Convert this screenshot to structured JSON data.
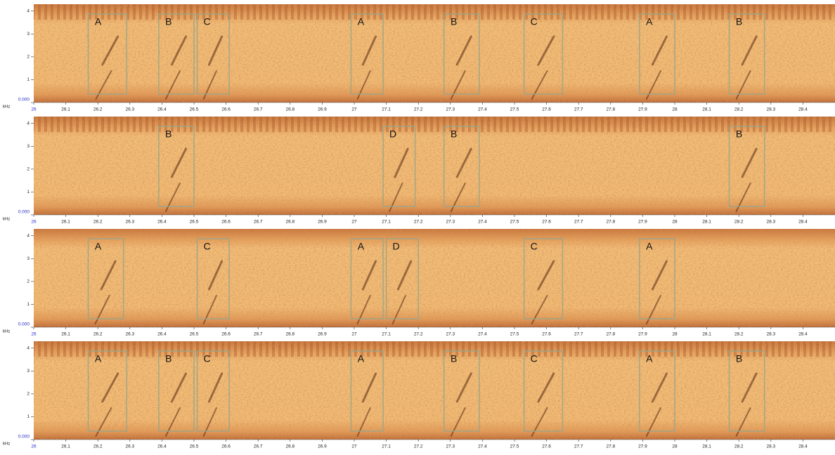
{
  "chart_data": [
    {
      "type": "spectrogram",
      "y_label": "kHz",
      "xlim": [
        26,
        28.5
      ],
      "ylim": [
        0,
        4.3
      ],
      "xticks": [
        26,
        26.1,
        26.2,
        26.3,
        26.4,
        26.5,
        26.6,
        26.7,
        26.8,
        26.9,
        27,
        27.1,
        27.2,
        27.3,
        27.4,
        27.5,
        27.6,
        27.7,
        27.8,
        27.9,
        28,
        28.1,
        28.2,
        28.3,
        28.4
      ],
      "yticks": [
        {
          "value": 0,
          "label": "0.000"
        },
        1,
        2,
        3,
        4
      ],
      "segments": [
        {
          "label": "A",
          "start": 26.17,
          "end": 26.29
        },
        {
          "label": "B",
          "start": 26.39,
          "end": 26.5
        },
        {
          "label": "C",
          "start": 26.51,
          "end": 26.61
        },
        {
          "label": "A",
          "start": 26.99,
          "end": 27.09
        },
        {
          "label": "B",
          "start": 27.28,
          "end": 27.39
        },
        {
          "label": "C",
          "start": 27.53,
          "end": 27.65
        },
        {
          "label": "A",
          "start": 27.89,
          "end": 28.0
        },
        {
          "label": "B",
          "start": 28.17,
          "end": 28.28
        }
      ]
    },
    {
      "type": "spectrogram",
      "y_label": "kHz",
      "xlim": [
        26,
        28.5
      ],
      "ylim": [
        0,
        4.3
      ],
      "xticks": [
        26,
        26.1,
        26.2,
        26.3,
        26.4,
        26.5,
        26.6,
        26.7,
        26.8,
        26.9,
        27,
        27.1,
        27.2,
        27.3,
        27.4,
        27.5,
        27.6,
        27.7,
        27.8,
        27.9,
        28,
        28.1,
        28.2,
        28.3,
        28.4
      ],
      "yticks": [
        {
          "value": 0,
          "label": "0.000"
        },
        1,
        2,
        3,
        4
      ],
      "segments": [
        {
          "label": "B",
          "start": 26.39,
          "end": 26.5
        },
        {
          "label": "D",
          "start": 27.09,
          "end": 27.19
        },
        {
          "label": "B",
          "start": 27.28,
          "end": 27.39
        },
        {
          "label": "B",
          "start": 28.17,
          "end": 28.28
        }
      ]
    },
    {
      "type": "spectrogram",
      "y_label": "kHz",
      "xlim": [
        26,
        28.5
      ],
      "ylim": [
        0,
        4.3
      ],
      "xticks": [
        26,
        26.1,
        26.2,
        26.3,
        26.4,
        26.5,
        26.6,
        26.7,
        26.8,
        26.9,
        27,
        27.1,
        27.2,
        27.3,
        27.4,
        27.5,
        27.6,
        27.7,
        27.8,
        27.9,
        28,
        28.1,
        28.2,
        28.3,
        28.4
      ],
      "yticks": [
        {
          "value": 0,
          "label": "0.000"
        },
        1,
        2,
        3,
        4
      ],
      "segments": [
        {
          "label": "A",
          "start": 26.17,
          "end": 26.28
        },
        {
          "label": "C",
          "start": 26.51,
          "end": 26.61
        },
        {
          "label": "A",
          "start": 26.99,
          "end": 27.09
        },
        {
          "label": "D",
          "start": 27.1,
          "end": 27.2
        },
        {
          "label": "C",
          "start": 27.53,
          "end": 27.65
        },
        {
          "label": "A",
          "start": 27.89,
          "end": 28.0
        }
      ]
    },
    {
      "type": "spectrogram",
      "y_label": "kHz",
      "xlim": [
        26,
        28.5
      ],
      "ylim": [
        0,
        4.3
      ],
      "xticks": [
        26,
        26.1,
        26.2,
        26.3,
        26.4,
        26.5,
        26.6,
        26.7,
        26.8,
        26.9,
        27,
        27.1,
        27.2,
        27.3,
        27.4,
        27.5,
        27.6,
        27.7,
        27.8,
        27.9,
        28,
        28.1,
        28.2,
        28.3,
        28.4
      ],
      "yticks": [
        {
          "value": 0,
          "label": "0.000"
        },
        1,
        2,
        3,
        4
      ],
      "segments": [
        {
          "label": "A",
          "start": 26.17,
          "end": 26.29
        },
        {
          "label": "B",
          "start": 26.39,
          "end": 26.5
        },
        {
          "label": "C",
          "start": 26.51,
          "end": 26.61
        },
        {
          "label": "A",
          "start": 26.99,
          "end": 27.09
        },
        {
          "label": "B",
          "start": 27.28,
          "end": 27.39
        },
        {
          "label": "C",
          "start": 27.53,
          "end": 27.65
        },
        {
          "label": "A",
          "start": 27.89,
          "end": 28.0
        },
        {
          "label": "B",
          "start": 28.17,
          "end": 28.28
        }
      ]
    }
  ]
}
